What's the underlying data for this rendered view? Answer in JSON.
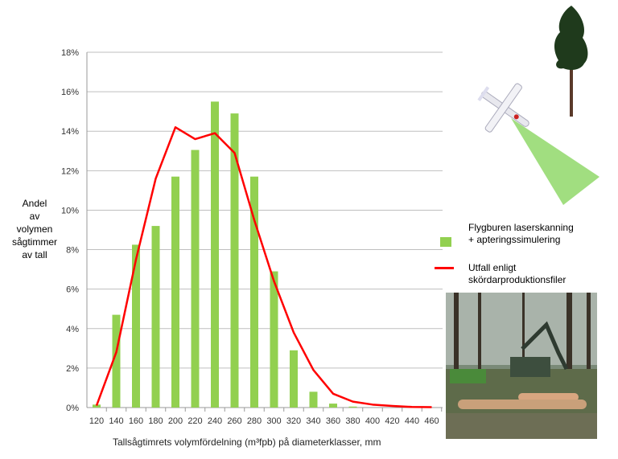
{
  "chart_data": {
    "type": "bar",
    "title": "",
    "xlabel": "Tallsågtimrets volymfördelning (m³fpb) på diameterklasser, mm",
    "ylabel_lines": [
      "Andel",
      "av",
      "volymen",
      "sågtimmer",
      "av tall"
    ],
    "ylim": [
      0,
      18
    ],
    "yticks": [
      "0%",
      "2%",
      "4%",
      "6%",
      "8%",
      "10%",
      "12%",
      "14%",
      "16%",
      "18%"
    ],
    "grid": true,
    "legend_placement": "right",
    "categories": [
      "120",
      "140",
      "160",
      "180",
      "200",
      "220",
      "240",
      "260",
      "280",
      "300",
      "320",
      "340",
      "360",
      "380",
      "400",
      "420",
      "440",
      "460"
    ],
    "series": [
      {
        "name": "Flygburen laserskanning + apteringssimulering",
        "type": "bar",
        "color": "#92d050",
        "values": [
          0.15,
          4.7,
          8.25,
          9.2,
          11.7,
          13.05,
          15.5,
          14.9,
          11.7,
          6.9,
          2.9,
          0.8,
          0.2,
          0.05,
          0,
          0,
          0,
          0
        ]
      },
      {
        "name": "Utfall enligt skördarproduktionsfiler",
        "type": "line",
        "color": "#ff0000",
        "values": [
          0.1,
          2.8,
          7.5,
          11.6,
          14.2,
          13.6,
          13.9,
          12.9,
          9.5,
          6.4,
          3.8,
          1.9,
          0.7,
          0.3,
          0.15,
          0.08,
          0.03,
          0.02
        ]
      }
    ]
  },
  "legend": {
    "bar_lines": [
      "Flygburen laserskanning",
      "+ apteringssimulering"
    ],
    "line_lines": [
      "Utfall enligt",
      "skördarproduktionsfiler"
    ]
  },
  "illustrations": [
    "tree-icon",
    "aircraft-laser-scanner-icon",
    "harvester-photo"
  ]
}
